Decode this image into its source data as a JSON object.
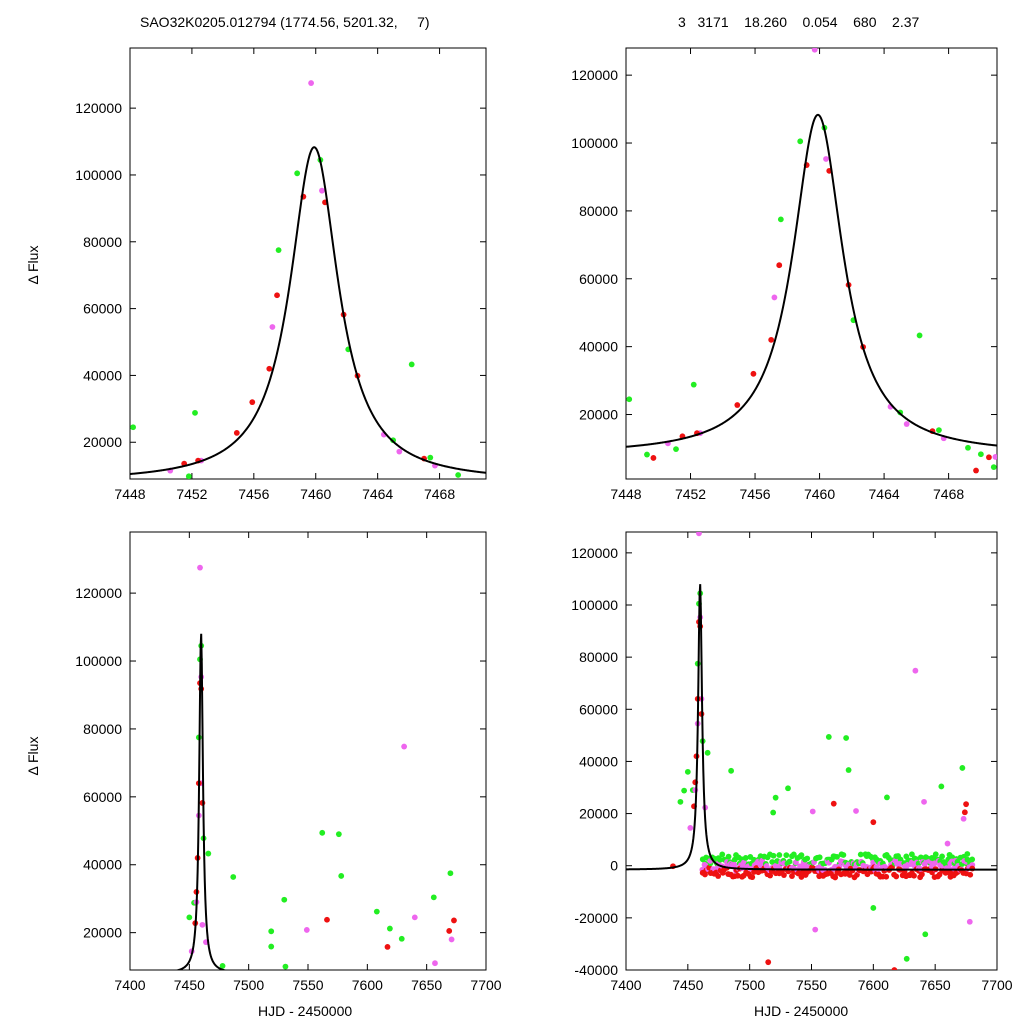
{
  "header": {
    "left_title": "SAO32K0205.012794 (1774.56, 5201.32,     7)",
    "right_stats": "3   3171    18.260    0.054    680    2.37"
  },
  "ylabel": "Δ Flux",
  "xlabel": "HJD - 2450000",
  "colors": {
    "green": "#22ee22",
    "magenta": "#ee66ee",
    "red": "#ee1111",
    "curve": "#000000"
  },
  "chart_data": [
    {
      "type": "scatter",
      "panel": "top-left",
      "xlim": [
        7448,
        7471
      ],
      "ylim": [
        9000,
        138000
      ],
      "xticks": [
        7448,
        7452,
        7456,
        7460,
        7464,
        7468
      ],
      "yticks": [
        20000,
        40000,
        60000,
        80000,
        100000,
        120000
      ],
      "fit": {
        "peak_x": 7459.9,
        "peak_y": 108300,
        "baseline": 8000,
        "width": 1.9
      },
      "series": [
        {
          "color": "green",
          "x": [
            7448.2,
            7451.8,
            7452.2,
            7457.6,
            7458.8,
            7460.3,
            7462.1,
            7465.0,
            7466.2,
            7467.4,
            7469.2
          ],
          "y": [
            24500,
            9800,
            28800,
            77500,
            100500,
            104500,
            47800,
            20600,
            43300,
            15400,
            10200
          ]
        },
        {
          "color": "magenta",
          "x": [
            7450.6,
            7452.6,
            7457.2,
            7459.7,
            7460.4,
            7464.4,
            7465.4,
            7467.7
          ],
          "y": [
            11500,
            14500,
            54500,
            127500,
            95300,
            22300,
            17200,
            13000
          ]
        },
        {
          "color": "red",
          "x": [
            7451.5,
            7452.4,
            7454.9,
            7455.9,
            7457.0,
            7457.5,
            7459.2,
            7460.6,
            7461.8,
            7462.7,
            7467.0
          ],
          "y": [
            13600,
            14500,
            22800,
            32000,
            42000,
            64000,
            93500,
            91800,
            58200,
            39900,
            15100
          ]
        }
      ]
    },
    {
      "type": "scatter",
      "panel": "top-right",
      "xlim": [
        7448,
        7471
      ],
      "ylim": [
        1000,
        128000
      ],
      "xticks": [
        7448,
        7452,
        7456,
        7460,
        7464,
        7468
      ],
      "yticks": [
        20000,
        40000,
        60000,
        80000,
        100000,
        120000
      ],
      "fit": {
        "peak_x": 7459.9,
        "peak_y": 108300,
        "baseline": 8000,
        "width": 1.9
      },
      "series": [
        {
          "color": "green",
          "x": [
            7448.2,
            7449.3,
            7451.1,
            7452.2,
            7457.6,
            7458.8,
            7460.3,
            7462.1,
            7465.0,
            7466.2,
            7467.4,
            7469.2,
            7470.0,
            7470.8
          ],
          "y": [
            24500,
            8200,
            9800,
            28800,
            77500,
            100500,
            104500,
            47800,
            20600,
            43300,
            15400,
            10200,
            8300,
            4500
          ]
        },
        {
          "color": "magenta",
          "x": [
            7450.6,
            7452.6,
            7457.2,
            7459.7,
            7460.4,
            7464.4,
            7465.4,
            7467.7,
            7470.9
          ],
          "y": [
            11500,
            14500,
            54500,
            127500,
            95300,
            22300,
            17200,
            13000,
            7500
          ]
        },
        {
          "color": "red",
          "x": [
            7449.7,
            7451.5,
            7452.4,
            7454.9,
            7455.9,
            7457.0,
            7457.5,
            7459.2,
            7460.6,
            7461.8,
            7462.7,
            7467.0,
            7469.7,
            7470.5
          ],
          "y": [
            7200,
            13600,
            14500,
            22800,
            32000,
            42000,
            64000,
            93500,
            91800,
            58200,
            39900,
            15100,
            3500,
            7400
          ]
        }
      ]
    },
    {
      "type": "scatter",
      "panel": "bottom-left",
      "xlim": [
        7400,
        7700
      ],
      "ylim": [
        9000,
        138000
      ],
      "xticks": [
        7400,
        7450,
        7500,
        7550,
        7600,
        7650,
        7700
      ],
      "yticks": [
        20000,
        40000,
        60000,
        80000,
        100000,
        120000
      ],
      "fit": {
        "peak_x": 7459.9,
        "peak_y": 108300,
        "baseline": 8000,
        "width": 1.9
      },
      "series": [
        {
          "color": "green",
          "x": [
            7450,
            7454,
            7458,
            7459,
            7460,
            7462,
            7466,
            7478,
            7487,
            7519,
            7519,
            7530,
            7531,
            7562,
            7576,
            7578,
            7608,
            7619,
            7629,
            7656,
            7670
          ],
          "y": [
            24500,
            28800,
            77500,
            100500,
            104500,
            47800,
            43300,
            10200,
            36400,
            15900,
            20400,
            29700,
            10000,
            49400,
            49000,
            36700,
            26200,
            21200,
            18200,
            30400,
            37500
          ]
        },
        {
          "color": "magenta",
          "x": [
            7452,
            7456,
            7458,
            7459,
            7460,
            7460,
            7461,
            7464,
            7549,
            7631,
            7640,
            7657,
            7671
          ],
          "y": [
            14500,
            29000,
            54500,
            127500,
            95300,
            64000,
            22300,
            17200,
            20800,
            74800,
            24500,
            11000,
            18000
          ]
        },
        {
          "color": "red",
          "x": [
            7455,
            7456,
            7457,
            7458,
            7459,
            7460,
            7461,
            7566,
            7617,
            7669,
            7673
          ],
          "y": [
            22800,
            32000,
            42000,
            64000,
            93500,
            91800,
            58200,
            23800,
            15800,
            20500,
            23600
          ]
        }
      ]
    },
    {
      "type": "scatter",
      "panel": "bottom-right",
      "xlim": [
        7400,
        7700
      ],
      "ylim": [
        -40000,
        128000
      ],
      "xticks": [
        7400,
        7450,
        7500,
        7550,
        7600,
        7650,
        7700
      ],
      "yticks": [
        -40000,
        -20000,
        0,
        20000,
        40000,
        60000,
        80000,
        100000,
        120000
      ],
      "fit": {
        "peak_x": 7459.9,
        "peak_y": 108300,
        "baseline": -1500,
        "width": 1.9
      },
      "dense_band": {
        "x_start": 7462,
        "x_end": 7680,
        "step": 1.6,
        "green_level": 2500,
        "magenta_level": 0,
        "red_level": -2500,
        "spread": 4000
      },
      "series": [
        {
          "color": "green",
          "x": [
            7444,
            7447,
            7450,
            7454,
            7458,
            7459,
            7460,
            7462,
            7466,
            7485,
            7519,
            7521,
            7531,
            7564,
            7578,
            7580,
            7600,
            7611,
            7627,
            7642,
            7655,
            7672,
            7676
          ],
          "y": [
            24500,
            28800,
            36000,
            29000,
            77500,
            100500,
            104500,
            47800,
            43300,
            36400,
            20400,
            26100,
            29700,
            49400,
            49000,
            36700,
            -16200,
            26200,
            -35700,
            -26300,
            30400,
            37500,
            4500
          ]
        },
        {
          "color": "magenta",
          "x": [
            7452,
            7456,
            7458,
            7459,
            7460,
            7461,
            7464,
            7551,
            7553,
            7586,
            7634,
            7641,
            7660,
            7673,
            7678
          ],
          "y": [
            14500,
            29000,
            54500,
            127500,
            95300,
            64000,
            22300,
            20800,
            -24500,
            21000,
            74800,
            24500,
            8500,
            18000,
            -21500
          ]
        },
        {
          "color": "red",
          "x": [
            7438,
            7455,
            7456,
            7457,
            7458,
            7459,
            7460,
            7461,
            7515,
            7568,
            7600,
            7617,
            7674,
            7675
          ],
          "y": [
            -200,
            22800,
            32000,
            42000,
            64000,
            93500,
            91800,
            58200,
            -37000,
            23800,
            16700,
            -40000,
            20500,
            23600
          ]
        }
      ]
    }
  ]
}
